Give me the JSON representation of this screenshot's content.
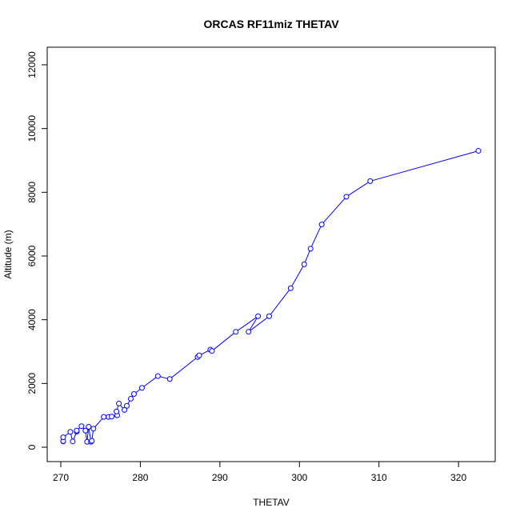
{
  "chart_data": {
    "type": "line",
    "title": "ORCAS RF11miz THETAV",
    "xlabel": "THETAV",
    "ylabel": "Altitude (m)",
    "xlim": [
      270,
      322.5
    ],
    "ylim": [
      0,
      12000
    ],
    "xticks": [
      "270",
      "280",
      "290",
      "300",
      "310",
      "320"
    ],
    "yticks": [
      "0",
      "2000",
      "4000",
      "6000",
      "8000",
      "10000",
      "12000"
    ],
    "grid": false,
    "series_color": "#0000ff",
    "marker": "open-circle",
    "x": [
      270.3,
      270.3,
      270.3,
      271.2,
      271.5,
      272.0,
      272.0,
      272.6,
      273.1,
      273.3,
      273.5,
      273.8,
      273.9,
      274.1,
      275.4,
      276.0,
      276.4,
      277.1,
      277.0,
      277.3,
      278.0,
      278.3,
      278.8,
      279.2,
      280.2,
      282.2,
      283.7,
      287.2,
      287.4,
      288.8,
      289.0,
      292.0,
      294.8,
      293.6,
      296.2,
      298.9,
      300.6,
      301.4,
      302.8,
      305.9,
      308.9,
      322.5
    ],
    "y": [
      180,
      190,
      310,
      480,
      180,
      490,
      520,
      660,
      520,
      170,
      640,
      170,
      200,
      580,
      950,
      950,
      960,
      1000,
      1120,
      1370,
      1170,
      1300,
      1520,
      1670,
      1860,
      2230,
      2140,
      2830,
      2880,
      3060,
      3020,
      3620,
      4110,
      3620,
      4110,
      4990,
      5740,
      6230,
      6990,
      7860,
      8350,
      9300
    ]
  }
}
